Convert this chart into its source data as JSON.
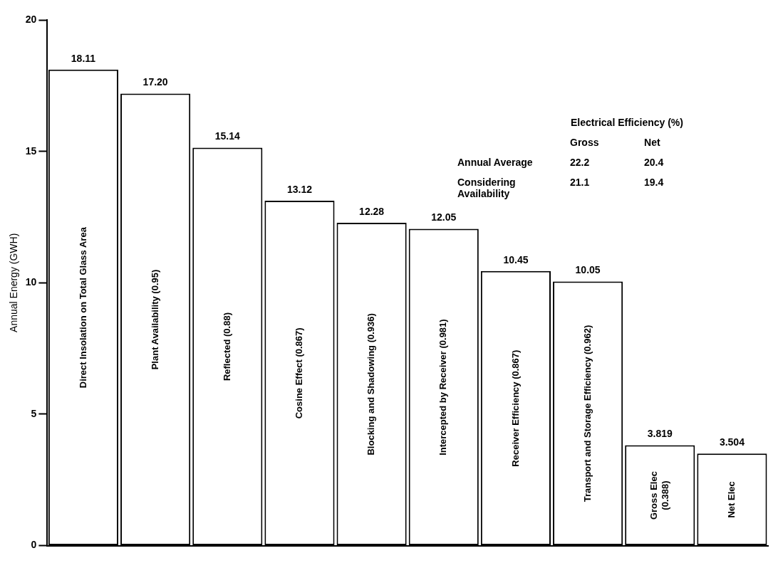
{
  "chart_data": {
    "type": "bar",
    "ylabel": "Annual Energy (GWH)",
    "categories": [
      "Direct Insolation on Total Glass Area",
      "Plant Availability (0.95)",
      "Reflected (0.88)",
      "Cosine Effect (0.867)",
      "Blocking and Shadowing (0.936)",
      "Intercepted by Receiver (0.981)",
      "Receiver Efficiency (0.867)",
      "Transport and Storage Efficiency (0.962)",
      "Gross Elec (0.388)",
      "Net Elec"
    ],
    "values": [
      18.11,
      17.2,
      15.14,
      13.12,
      12.28,
      12.05,
      10.45,
      10.05,
      3.819,
      3.504
    ],
    "value_labels": [
      "18.11",
      "17.20",
      "15.14",
      "13.12",
      "12.28",
      "12.05",
      "10.45",
      "10.05",
      "3.819",
      "3.504"
    ],
    "color": "#ffffff",
    "ylim": [
      0,
      20
    ],
    "yticks": [
      0,
      5,
      10,
      15,
      20
    ],
    "grid": false,
    "annotations": [
      "Electrical Efficiency (%)",
      "Gross",
      "Net",
      "Annual Average",
      "22.2",
      "20.4",
      "Considering Availability",
      "21.1",
      "19.4"
    ]
  }
}
